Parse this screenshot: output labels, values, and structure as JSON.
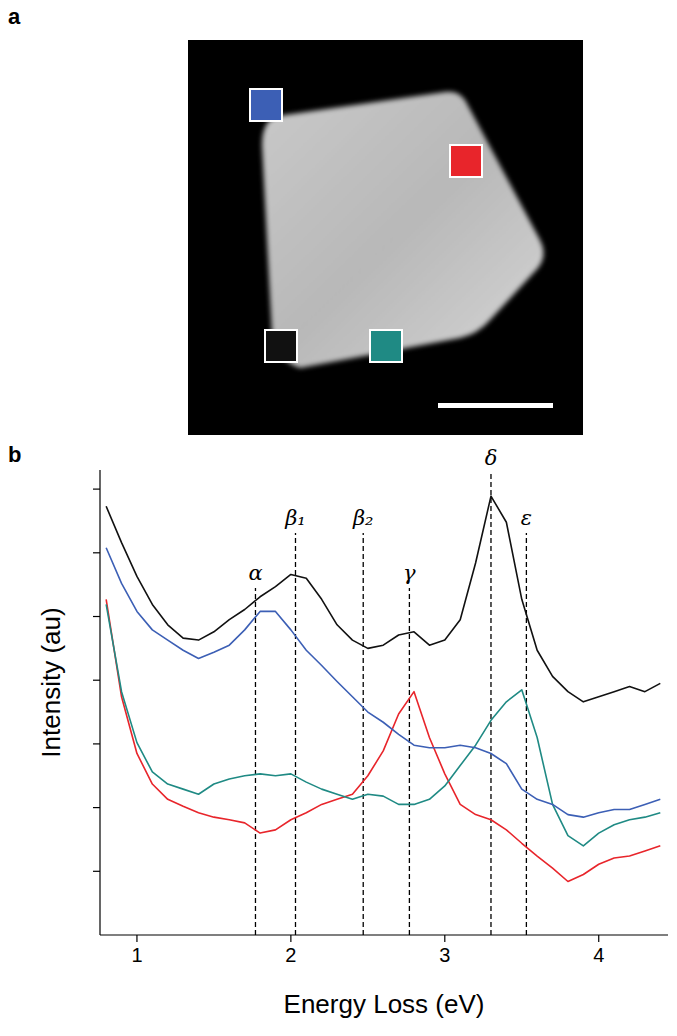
{
  "panel_a": {
    "label": "a"
  },
  "chart_data": {
    "type": "line",
    "panel_label": "b",
    "x_label": "Energy Loss (eV)",
    "y_label": "Intensity (au)",
    "xlim": [
      0.76,
      4.45
    ],
    "xticks": [
      1,
      2,
      3,
      4
    ],
    "ylim": [
      0,
      7.3
    ],
    "yticks": [
      1,
      2,
      3,
      4,
      5,
      6,
      7
    ],
    "tick_labels": "x",
    "grid": false,
    "x": [
      0.8,
      0.9,
      1.0,
      1.1,
      1.2,
      1.3,
      1.4,
      1.5,
      1.6,
      1.7,
      1.8,
      1.9,
      2.0,
      2.1,
      2.2,
      2.3,
      2.4,
      2.5,
      2.6,
      2.7,
      2.8,
      2.9,
      3.0,
      3.1,
      3.2,
      3.3,
      3.4,
      3.5,
      3.6,
      3.7,
      3.8,
      3.9,
      4.0,
      4.1,
      4.2,
      4.3,
      4.4
    ],
    "series": [
      {
        "color": "#111111",
        "values": [
          6.73,
          6.16,
          5.63,
          5.19,
          4.87,
          4.66,
          4.63,
          4.76,
          4.95,
          5.11,
          5.31,
          5.47,
          5.66,
          5.6,
          5.27,
          4.87,
          4.63,
          4.5,
          4.55,
          4.71,
          4.76,
          4.55,
          4.63,
          4.95,
          5.84,
          6.89,
          6.48,
          5.27,
          4.47,
          4.06,
          3.82,
          3.66,
          3.74,
          3.82,
          3.9,
          3.82,
          3.95
        ]
      },
      {
        "color": "#3c5fb5",
        "values": [
          6.08,
          5.52,
          5.08,
          4.79,
          4.63,
          4.47,
          4.34,
          4.44,
          4.55,
          4.79,
          5.08,
          5.08,
          4.79,
          4.47,
          4.23,
          3.98,
          3.74,
          3.5,
          3.34,
          3.15,
          2.98,
          2.94,
          2.94,
          2.98,
          2.94,
          2.85,
          2.69,
          2.29,
          2.13,
          2.05,
          1.89,
          1.85,
          1.92,
          1.97,
          1.97,
          2.05,
          2.13
        ]
      },
      {
        "color": "#1f8a84",
        "values": [
          5.19,
          3.82,
          3.02,
          2.56,
          2.37,
          2.29,
          2.21,
          2.37,
          2.45,
          2.5,
          2.53,
          2.5,
          2.53,
          2.4,
          2.29,
          2.21,
          2.13,
          2.21,
          2.18,
          2.05,
          2.05,
          2.13,
          2.34,
          2.66,
          2.98,
          3.37,
          3.66,
          3.85,
          3.1,
          2.05,
          1.56,
          1.4,
          1.6,
          1.73,
          1.81,
          1.85,
          1.92
        ]
      },
      {
        "color": "#e8252b",
        "values": [
          5.27,
          3.74,
          2.85,
          2.37,
          2.13,
          2.02,
          1.92,
          1.85,
          1.81,
          1.76,
          1.6,
          1.65,
          1.81,
          1.92,
          2.05,
          2.13,
          2.21,
          2.5,
          2.89,
          3.47,
          3.82,
          3.1,
          2.53,
          2.05,
          1.89,
          1.81,
          1.65,
          1.44,
          1.24,
          1.05,
          0.84,
          0.95,
          1.11,
          1.21,
          1.24,
          1.32,
          1.4
        ]
      }
    ],
    "annotations": [
      {
        "text": "α",
        "x": 1.77
      },
      {
        "text": "β₁",
        "x": 2.03
      },
      {
        "text": "β₂",
        "x": 2.47
      },
      {
        "text": "γ",
        "x": 2.77
      },
      {
        "text": "δ",
        "x": 3.3
      },
      {
        "text": "ε",
        "x": 3.53
      }
    ]
  }
}
